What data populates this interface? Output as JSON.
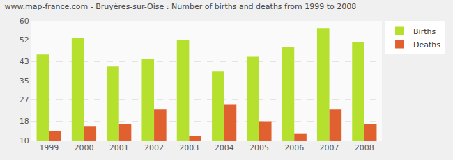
{
  "chart_data": {
    "type": "bar",
    "title": "www.map-france.com - Bruyères-sur-Oise : Number of births and deaths from 1999 to 2008",
    "categories": [
      "1999",
      "2000",
      "2001",
      "2002",
      "2003",
      "2004",
      "2005",
      "2006",
      "2007",
      "2008"
    ],
    "series": [
      {
        "name": "Births",
        "color": "#b5e02e",
        "values": [
          46,
          53,
          41,
          44,
          52,
          39,
          45,
          49,
          57,
          51
        ]
      },
      {
        "name": "Deaths",
        "color": "#e0612f",
        "values": [
          14,
          16,
          17,
          23,
          12,
          25,
          18,
          13,
          23,
          17
        ]
      }
    ],
    "ylim": [
      10,
      60
    ],
    "yticks": [
      10,
      18,
      27,
      35,
      43,
      52,
      60
    ],
    "grid": true,
    "legend": "top right"
  }
}
